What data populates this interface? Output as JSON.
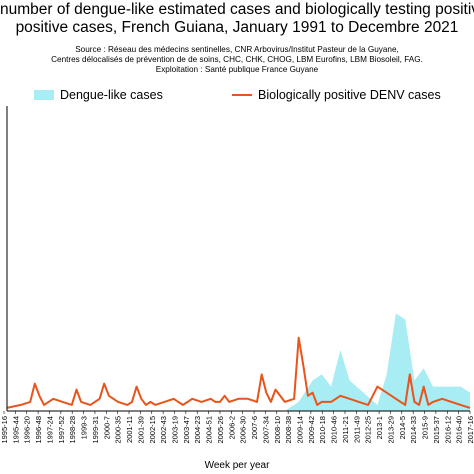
{
  "title": {
    "line1": "number of dengue-like estimated cases and biologically testing positive",
    "line2": "positive cases, French Guiana, January 1991 to Decembre 2021"
  },
  "source": {
    "line1": "Source : Réseau des médecins sentinelles, CNR Arbovirus/Institut Pasteur de la Guyane,",
    "line2": "Centres délocalisés de prévention de de soins, CHC, CHK, CHOG, LBM Eurofins, LBM Biosoleil, FAG.",
    "line3": "Exploitation : Santé publique France Guyane"
  },
  "chart_data": {
    "type": "area",
    "xlabel": "Week per year",
    "ylabel": "",
    "title": "number of dengue-like estimated cases and biologically testing positive positive cases, French Guiana, January 1991 to Decembre 2021",
    "legend_position": "top",
    "grid": false,
    "colors": {
      "area": "#a8ecf4",
      "line": "#e8541c"
    },
    "ylim": [
      0,
      100
    ],
    "x_tick_labels": [
      "1995-16",
      "1995-44",
      "1996-20",
      "1996-48",
      "1997-24",
      "1997-52",
      "1998-28",
      "1999-3",
      "1999-31",
      "2000-7",
      "2000-35",
      "2001-11",
      "2001-39",
      "2002-15",
      "2002-43",
      "2003-19",
      "2003-47",
      "2004-23",
      "2004-51",
      "2005-26",
      "2006-2",
      "2006-30",
      "2007-6",
      "2007-34",
      "2008-10",
      "2008-38",
      "2009-14",
      "2009-42",
      "2010-18",
      "2010-46",
      "2011-21",
      "2011-49",
      "2012-25",
      "2013-1",
      "2013-29",
      "2014-5",
      "2014-33",
      "2015-9",
      "2015-37",
      "2016-12",
      "2016-40",
      "2017-16"
    ],
    "series": [
      {
        "name": "Dengue-like cases",
        "kind": "area",
        "x": [
          0,
          5,
          8,
          11,
          13,
          15,
          18,
          21,
          24,
          27,
          29,
          33,
          36,
          40,
          44,
          48,
          52,
          56,
          60,
          63,
          66,
          68,
          70,
          72,
          74,
          77,
          80,
          82,
          84,
          86,
          88,
          90,
          92,
          94,
          96,
          98,
          100
        ],
        "y": [
          0,
          0,
          0,
          0,
          0,
          0,
          0,
          0,
          0,
          0,
          0,
          0,
          0,
          0,
          0,
          0,
          0,
          0,
          0,
          3,
          10,
          12,
          8,
          20,
          10,
          6,
          2,
          12,
          32,
          30,
          10,
          14,
          8,
          8,
          8,
          8,
          6
        ]
      },
      {
        "name": "Biologically positive DENV cases",
        "kind": "line",
        "x": [
          0,
          3,
          5,
          6,
          7,
          8,
          10,
          12,
          14,
          15,
          16,
          18,
          20,
          21,
          22,
          24,
          26,
          27,
          28,
          29,
          30,
          31,
          32,
          34,
          36,
          37,
          38,
          39,
          40,
          42,
          44,
          45,
          46,
          47,
          48,
          50,
          52,
          54,
          55,
          56,
          57,
          58,
          60,
          62,
          63,
          64,
          65,
          66,
          67,
          68,
          70,
          72,
          74,
          76,
          78,
          80,
          82,
          84,
          86,
          87,
          88,
          89,
          90,
          91,
          92,
          94,
          96,
          98,
          100
        ],
        "y": [
          1,
          2,
          3,
          9,
          5,
          2,
          4,
          3,
          2,
          7,
          3,
          2,
          4,
          9,
          5,
          3,
          2,
          3,
          8,
          4,
          2,
          3,
          2,
          3,
          4,
          3,
          2,
          3,
          4,
          3,
          4,
          3,
          3,
          5,
          3,
          4,
          4,
          3,
          12,
          6,
          3,
          7,
          3,
          4,
          24,
          15,
          5,
          6,
          2,
          3,
          3,
          5,
          4,
          3,
          2,
          8,
          6,
          4,
          2,
          12,
          3,
          2,
          8,
          2,
          3,
          4,
          3,
          2,
          1
        ]
      }
    ]
  }
}
